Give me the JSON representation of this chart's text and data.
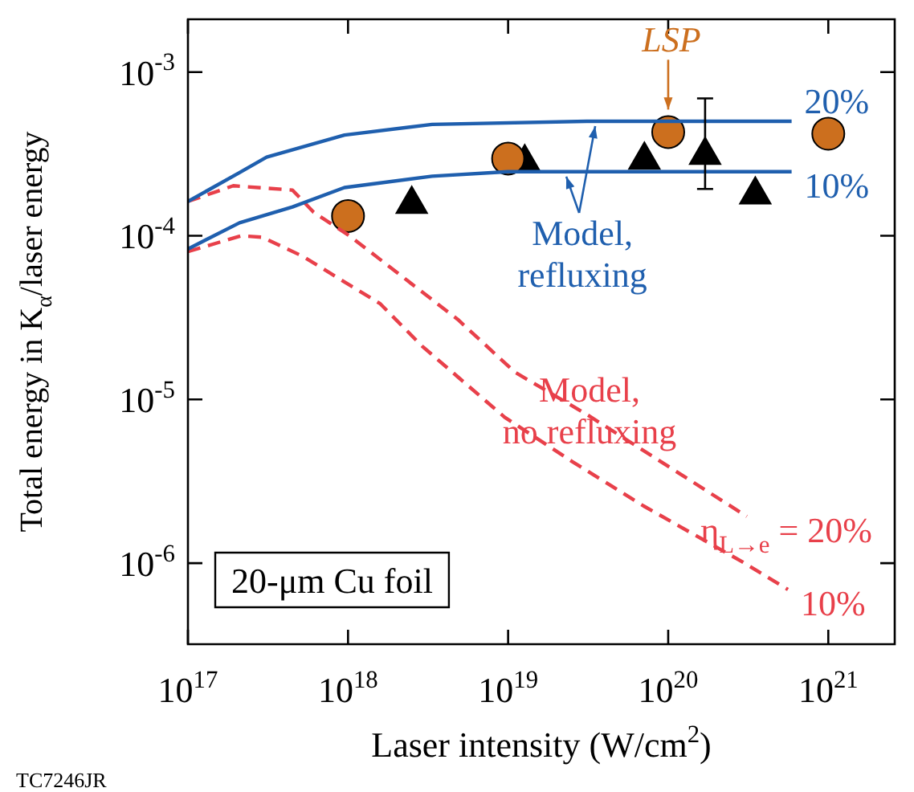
{
  "chart_data": {
    "type": "line",
    "xlabel": "Laser intensity (W/cm$^{2}$)",
    "ylabel": "Total energy in K$_{α}$/laser energy",
    "log": "xy",
    "xlim": [
      1e+17,
      2.6e+21
    ],
    "ylim": [
      3.2e-07,
      0.0021
    ],
    "xticks": [
      {
        "value": 1e+17,
        "label": "10$^{17}$"
      },
      {
        "value": 1e+18,
        "label": "10$^{18}$"
      },
      {
        "value": 1e+19,
        "label": "10$^{19}$"
      },
      {
        "value": 1e+20,
        "label": "10$^{20}$"
      },
      {
        "value": 1e+21,
        "label": "10$^{21}$"
      }
    ],
    "yticks": [
      {
        "value": 1e-06,
        "label": "10$^{-6}$"
      },
      {
        "value": 1e-05,
        "label": "10$^{-5}$"
      },
      {
        "value": 0.0001,
        "label": "10$^{-4}$"
      },
      {
        "value": 0.001,
        "label": "10$^{-3}$"
      }
    ],
    "series": [
      {
        "name": "20%",
        "color": "#1f5fae",
        "marker": "none",
        "line_style": "solid",
        "x": [
          1e+17,
          2.1e+17,
          3.1e+17,
          9.5e+17,
          3.35e+18,
          3.1e+19,
          5.9e+20
        ],
        "values": [
          0.000162,
          0.000243,
          0.000302,
          0.000412,
          0.000479,
          0.0005,
          0.0005
        ]
      },
      {
        "name": "10%",
        "color": "#1f5fae",
        "marker": "none",
        "line_style": "solid",
        "x": [
          1e+17,
          2.1e+17,
          4.5e+17,
          9.5e+17,
          3.35e+18,
          1e+19,
          5.9e+20
        ],
        "values": [
          8.3e-05,
          0.00012,
          0.00015,
          0.000197,
          0.000231,
          0.000246,
          0.000246
        ]
      },
      {
        "name": "η$_{L→e}$ = 20%",
        "color": "#e8404a",
        "marker": "none",
        "line_style": "dashed",
        "x": [
          1e+17,
          1.92e+17,
          4.5e+17,
          6.1e+17,
          1.02e+18,
          4.85e+18,
          1.1e+19,
          3.1e+19,
          3.1e+20
        ],
        "values": [
          0.000162,
          0.000202,
          0.00019,
          0.000139,
          0.0001,
          3.08e-05,
          1.47e-05,
          8.1e-06,
          1.93e-06
        ]
      },
      {
        "name": "10%",
        "color": "#e8404a",
        "marker": "none",
        "line_style": "dashed",
        "x": [
          1e+17,
          2.15e+17,
          2.9e+17,
          5.2e+17,
          1.59e+18,
          2.9e+18,
          9.5e+18,
          2.5e+19,
          7e+19,
          2.9e+20,
          5.6e+20
        ],
        "values": [
          8e-05,
          0.0001,
          9.8e-05,
          7.5e-05,
          3.84e-05,
          2.12e-05,
          7.8e-06,
          4.19e-06,
          2.24e-06,
          1.02e-06,
          6.9e-07
        ]
      },
      {
        "type": "scatter",
        "color": "#cc6f1e",
        "marker": "circle",
        "x": [
          1e+18,
          1e+19,
          1e+20,
          1e+21
        ],
        "values": [
          0.000132,
          0.000296,
          0.00043,
          0.00042
        ]
      },
      {
        "type": "scatter",
        "color": "#000000",
        "marker": "triangle",
        "x": [
          2.5e+18,
          1.27e+19,
          7.1e+19,
          1.7e+20,
          3.5e+20
        ],
        "values": [
          0.000156,
          0.00028,
          0.00029,
          0.00031,
          0.000178
        ],
        "errors": [
          null,
          null,
          null,
          [
            0.000193,
            0.00069
          ],
          null
        ]
      }
    ],
    "annotations": [
      {
        "text": "LSP",
        "x": 1e+20,
        "y": 0.00043
      },
      {
        "text": "Model, refluxing",
        "x": 3.5e+19,
        "y": 0.0005
      },
      "Model, no refluxing",
      "20-μm Cu foil",
      "TC7246JR"
    ]
  }
}
